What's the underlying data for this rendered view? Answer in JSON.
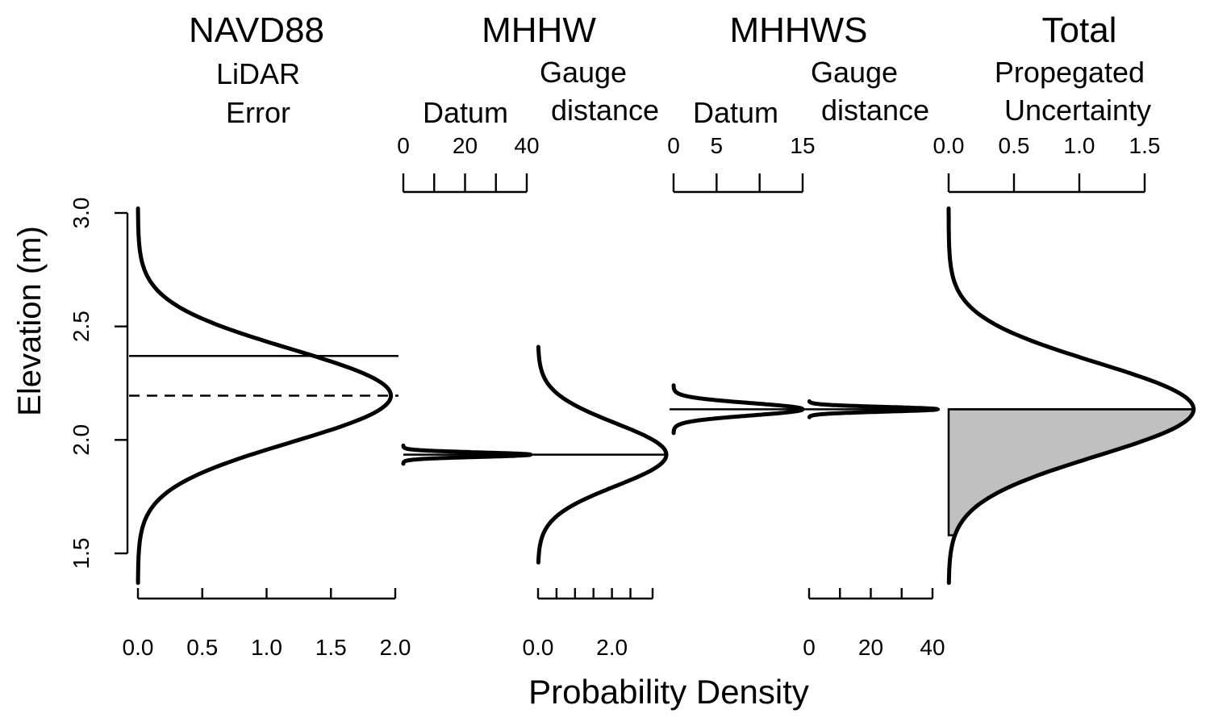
{
  "colors": {
    "ink": "#000000",
    "shade": "#c0c0c0",
    "background": "#ffffff"
  },
  "chart_data": {
    "type": "line",
    "ylabel": "Elevation (m)",
    "xlabel": "Probability Density",
    "ylim": [
      1.37,
      3.02
    ],
    "yticks": [
      "1.5",
      "2.0",
      "2.5",
      "3.0"
    ],
    "yticks_values": [
      1.5,
      2.0,
      2.5,
      3.0
    ],
    "panels": [
      {
        "title": "NAVD88",
        "series": [
          {
            "name": "LiDAR Error",
            "label_lines": [
              "LiDAR",
              "Error"
            ],
            "axis": "bottom",
            "axis_ticks": [
              "0.0",
              "0.5",
              "1.0",
              "1.5",
              "2.0"
            ],
            "axis_tick_values": [
              0.0,
              0.5,
              1.0,
              1.5,
              2.0
            ],
            "xlim": [
              0,
              2.0
            ],
            "mean": 2.195,
            "sd": 0.205,
            "y_range": [
              1.37,
              3.02
            ]
          }
        ],
        "reference_lines": [
          {
            "y": 2.37,
            "style": "solid"
          },
          {
            "y": 2.195,
            "style": "dashed"
          }
        ]
      },
      {
        "title": "MHHW",
        "series": [
          {
            "name": "Datum",
            "label_lines": [
              "Datum"
            ],
            "axis": "top",
            "axis_ticks": [
              "0",
              "20",
              "40"
            ],
            "axis_tick_values": [
              0,
              20,
              40
            ],
            "xlim": [
              0,
              40
            ],
            "mean": 1.935,
            "sd": 0.0098,
            "y_range": [
              1.895,
              1.975
            ]
          },
          {
            "name": "Gauge distance",
            "label_lines": [
              "Gauge",
              "distance"
            ],
            "axis": "bottom",
            "axis_ticks": [
              "0.0",
              "2.0"
            ],
            "axis_tick_values": [
              0.0,
              2.0
            ],
            "xlim": [
              0,
              3.1
            ],
            "mean": 1.935,
            "sd": 0.138,
            "y_range": [
              1.46,
              2.41
            ]
          }
        ],
        "reference_lines": [
          {
            "y": 1.935,
            "style": "solid"
          }
        ]
      },
      {
        "title": "MHHWS",
        "series": [
          {
            "name": "Datum",
            "label_lines": [
              "Datum"
            ],
            "axis": "top",
            "axis_ticks": [
              "0",
              "5",
              "15"
            ],
            "axis_tick_values": [
              0,
              5,
              15
            ],
            "xlim": [
              0,
              15
            ],
            "mean": 2.135,
            "sd": 0.027,
            "y_range": [
              2.03,
              2.24
            ]
          },
          {
            "name": "Gauge distance",
            "label_lines": [
              "Gauge",
              "distance"
            ],
            "axis": "bottom",
            "axis_ticks": [
              "0",
              "20",
              "40"
            ],
            "axis_tick_values": [
              0,
              20,
              40
            ],
            "xlim": [
              0,
              40
            ],
            "mean": 2.135,
            "sd": 0.0101,
            "y_range": [
              2.1,
              2.17
            ]
          }
        ],
        "reference_lines": [
          {
            "y": 2.135,
            "style": "solid"
          }
        ]
      },
      {
        "title": "Total",
        "series": [
          {
            "name": "Propegated Uncertainty",
            "label_lines": [
              "Propegated",
              "Uncertainty"
            ],
            "axis": "top",
            "axis_ticks": [
              "0.0",
              "0.5",
              "1.0",
              "1.5"
            ],
            "axis_tick_values": [
              0.0,
              0.5,
              1.0,
              1.5
            ],
            "xlim": [
              0,
              1.5
            ],
            "mean": 2.135,
            "sd": 0.205,
            "y_range": [
              1.37,
              3.02
            ],
            "shaded_below": 2.135
          }
        ],
        "reference_lines": [
          {
            "y": 2.135,
            "style": "solid"
          }
        ]
      }
    ]
  }
}
